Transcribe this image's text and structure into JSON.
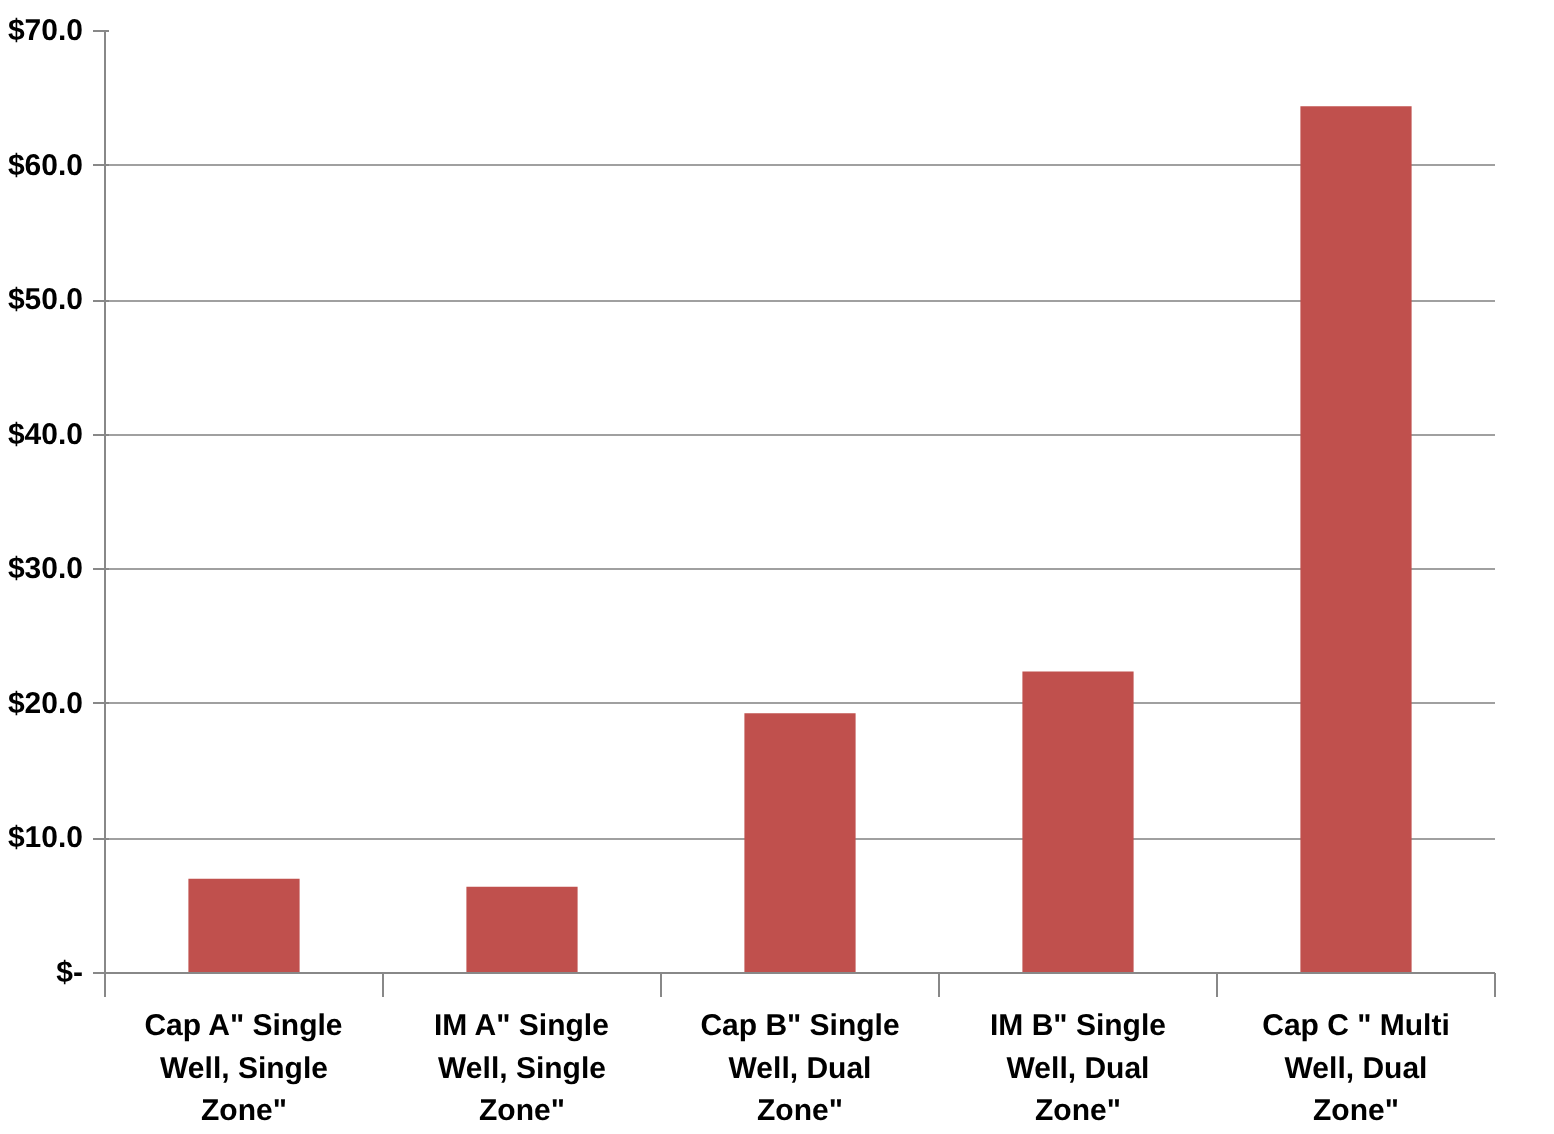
{
  "chart_data": {
    "type": "bar",
    "categories": [
      "Cap A\" Single Well, Single Zone\"",
      "IM A\" Single Well, Single Zone\"",
      "Cap B\" Single Well, Dual Zone\"",
      "IM B\" Single Well, Dual Zone\"",
      "Cap C \" Multi Well, Dual Zone\""
    ],
    "values": [
      7.0,
      6.4,
      19.3,
      22.4,
      64.4
    ],
    "color": "#c0504d",
    "ylim": [
      0,
      70
    ],
    "yticks": [
      {
        "value": 0,
        "label": "$-"
      },
      {
        "value": 10,
        "label": "$10.0"
      },
      {
        "value": 20,
        "label": "$20.0"
      },
      {
        "value": 30,
        "label": "$30.0"
      },
      {
        "value": 40,
        "label": "$40.0"
      },
      {
        "value": 50,
        "label": "$50.0"
      },
      {
        "value": 60,
        "label": "$60.0"
      },
      {
        "value": 70,
        "label": "$70.0"
      }
    ],
    "grid": "y"
  }
}
